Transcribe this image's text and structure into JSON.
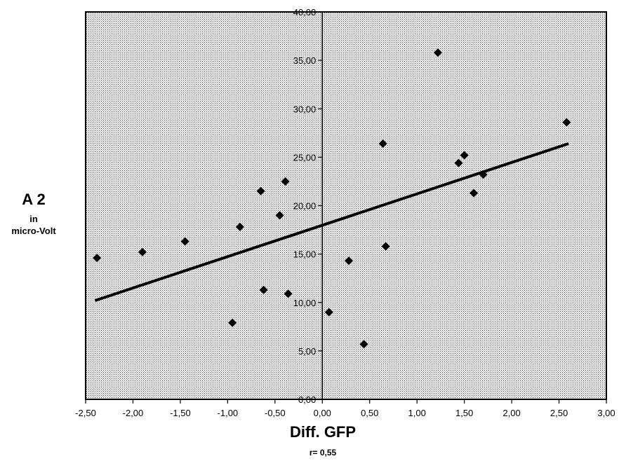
{
  "chart_data": {
    "type": "scatter",
    "title": "",
    "xlabel": "Diff. GFP",
    "ylabel": "A 2",
    "ylabel_unit_line1": "in",
    "ylabel_unit_line2": "micro-Volt",
    "annotation": "r= 0,55",
    "xlim": [
      -2.5,
      3.0
    ],
    "ylim": [
      0,
      40
    ],
    "x_ticks": [
      "-2,50",
      "-2,00",
      "-1,50",
      "-1,00",
      "-0,50",
      "0,00",
      "0,50",
      "1,00",
      "1,50",
      "2,00",
      "2,50",
      "3,00"
    ],
    "y_ticks": [
      "0,00",
      "5,00",
      "10,00",
      "15,00",
      "20,00",
      "25,00",
      "30,00",
      "35,00",
      "40,00"
    ],
    "grid": false,
    "legend": "none",
    "background": "stippled gray",
    "marker": "diamond",
    "series": [
      {
        "points": [
          {
            "x": -2.38,
            "y": 14.6
          },
          {
            "x": -1.9,
            "y": 15.2
          },
          {
            "x": -1.45,
            "y": 16.3
          },
          {
            "x": -0.95,
            "y": 7.9
          },
          {
            "x": -0.87,
            "y": 17.8
          },
          {
            "x": -0.65,
            "y": 21.5
          },
          {
            "x": -0.62,
            "y": 11.3
          },
          {
            "x": -0.45,
            "y": 19.0
          },
          {
            "x": -0.39,
            "y": 22.5
          },
          {
            "x": -0.36,
            "y": 10.9
          },
          {
            "x": 0.07,
            "y": 9.0
          },
          {
            "x": 0.28,
            "y": 14.3
          },
          {
            "x": 0.44,
            "y": 5.7
          },
          {
            "x": 0.64,
            "y": 26.4
          },
          {
            "x": 0.67,
            "y": 15.8
          },
          {
            "x": 1.22,
            "y": 35.8
          },
          {
            "x": 1.44,
            "y": 24.4
          },
          {
            "x": 1.5,
            "y": 25.2
          },
          {
            "x": 1.6,
            "y": 21.3
          },
          {
            "x": 1.7,
            "y": 23.2
          },
          {
            "x": 2.58,
            "y": 28.6
          }
        ]
      }
    ],
    "trendline": {
      "x": [
        -2.4,
        2.6
      ],
      "y": [
        10.2,
        26.4
      ]
    }
  }
}
